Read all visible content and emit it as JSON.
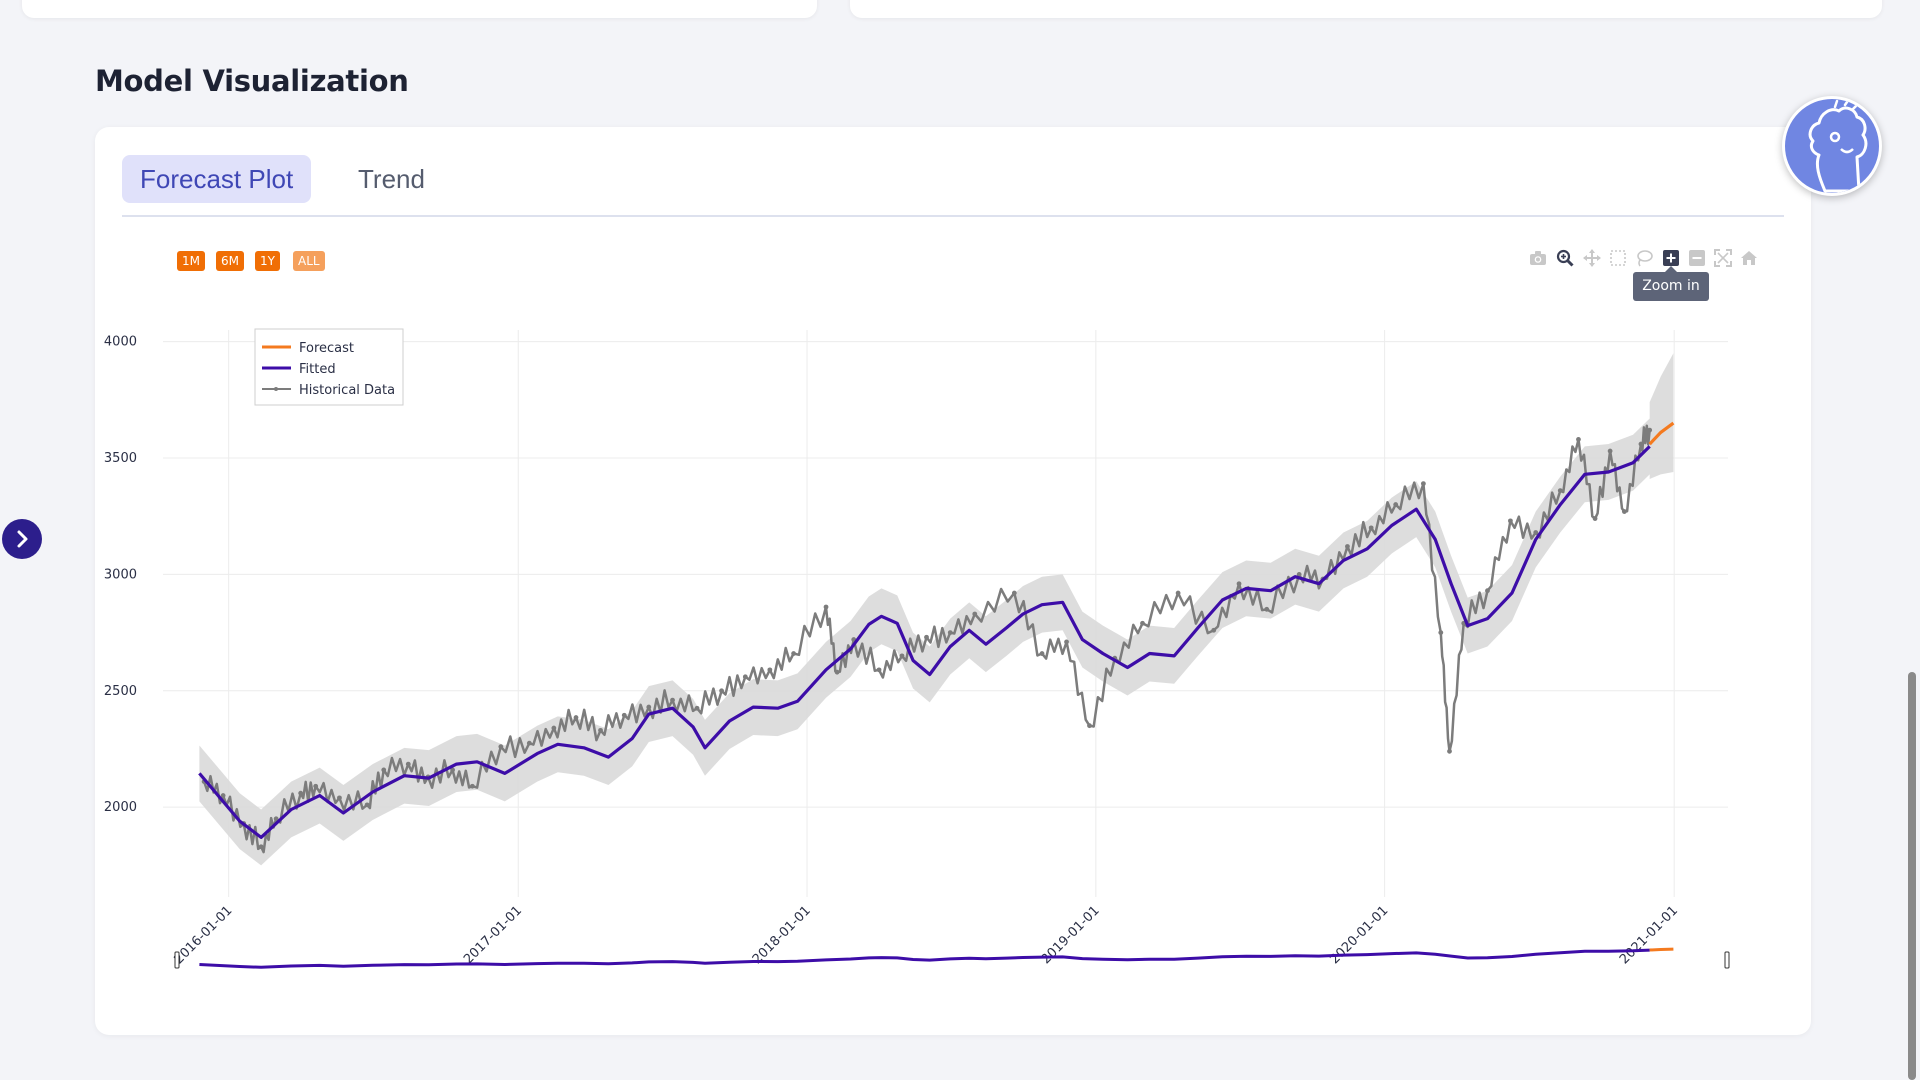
{
  "section": {
    "title": "Model Visualization"
  },
  "tabs": [
    {
      "label": "Forecast Plot",
      "active": true
    },
    {
      "label": "Trend",
      "active": false
    }
  ],
  "range_selector": [
    "1M",
    "6M",
    "1Y",
    "ALL"
  ],
  "modebar": {
    "icons": [
      "camera-icon",
      "zoom-icon",
      "pan-icon",
      "box-select-icon",
      "lasso-icon",
      "zoom-in-icon",
      "zoom-out-icon",
      "autoscale-icon",
      "reset-axes-icon"
    ],
    "tooltip": "Zoom in"
  },
  "colors": {
    "forecast": "#f47a1f",
    "fitted": "#3d0da8",
    "historical": "#7c7c7c",
    "band": "#d9d9d9",
    "accent": "#3f47b5",
    "range_button": "#f06e05"
  },
  "chart_data": {
    "type": "line",
    "x_ticks": [
      "2016-01-01",
      "2017-01-01",
      "2018-01-01",
      "2019-01-01",
      "2020-01-01",
      "2021-01-01"
    ],
    "y_ticks": [
      2000,
      2500,
      3000,
      3500,
      4000
    ],
    "xlim": [
      "2015-10-10",
      "2021-03-10"
    ],
    "ylim": [
      1700,
      4050
    ],
    "legend": {
      "position": "top-left",
      "entries": [
        "Forecast",
        "Fitted",
        "Historical Data"
      ]
    },
    "grid": true,
    "range_slider": true,
    "series": [
      {
        "name": "Fitted",
        "points": [
          [
            "2015-11-25",
            2145
          ],
          [
            "2016-01-15",
            1940
          ],
          [
            "2016-02-11",
            1870
          ],
          [
            "2016-03-20",
            1990
          ],
          [
            "2016-04-25",
            2050
          ],
          [
            "2016-05-25",
            1975
          ],
          [
            "2016-07-01",
            2065
          ],
          [
            "2016-08-10",
            2135
          ],
          [
            "2016-09-10",
            2125
          ],
          [
            "2016-10-15",
            2185
          ],
          [
            "2016-11-10",
            2195
          ],
          [
            "2016-12-15",
            2145
          ],
          [
            "2017-01-25",
            2230
          ],
          [
            "2017-02-20",
            2270
          ],
          [
            "2017-03-25",
            2255
          ],
          [
            "2017-04-25",
            2215
          ],
          [
            "2017-05-25",
            2295
          ],
          [
            "2017-06-15",
            2400
          ],
          [
            "2017-07-15",
            2425
          ],
          [
            "2017-08-10",
            2345
          ],
          [
            "2017-08-25",
            2255
          ],
          [
            "2017-09-25",
            2370
          ],
          [
            "2017-10-25",
            2430
          ],
          [
            "2017-11-25",
            2425
          ],
          [
            "2017-12-20",
            2455
          ],
          [
            "2018-01-25",
            2590
          ],
          [
            "2018-02-25",
            2680
          ],
          [
            "2018-03-20",
            2785
          ],
          [
            "2018-04-05",
            2820
          ],
          [
            "2018-04-25",
            2790
          ],
          [
            "2018-05-15",
            2630
          ],
          [
            "2018-06-05",
            2570
          ],
          [
            "2018-07-01",
            2690
          ],
          [
            "2018-07-25",
            2760
          ],
          [
            "2018-08-15",
            2700
          ],
          [
            "2018-09-10",
            2770
          ],
          [
            "2018-10-01",
            2830
          ],
          [
            "2018-10-25",
            2870
          ],
          [
            "2018-11-20",
            2880
          ],
          [
            "2018-12-15",
            2720
          ],
          [
            "2019-01-10",
            2660
          ],
          [
            "2019-02-10",
            2600
          ],
          [
            "2019-03-10",
            2660
          ],
          [
            "2019-04-10",
            2650
          ],
          [
            "2019-05-10",
            2770
          ],
          [
            "2019-06-10",
            2890
          ],
          [
            "2019-07-10",
            2940
          ],
          [
            "2019-08-10",
            2930
          ],
          [
            "2019-09-10",
            2990
          ],
          [
            "2019-10-10",
            2960
          ],
          [
            "2019-11-10",
            3060
          ],
          [
            "2019-12-10",
            3110
          ],
          [
            "2020-01-10",
            3210
          ],
          [
            "2020-02-10",
            3280
          ],
          [
            "2020-03-05",
            3150
          ],
          [
            "2020-03-25",
            2960
          ],
          [
            "2020-04-15",
            2780
          ],
          [
            "2020-05-10",
            2810
          ],
          [
            "2020-06-10",
            2920
          ],
          [
            "2020-07-10",
            3150
          ],
          [
            "2020-08-10",
            3300
          ],
          [
            "2020-09-10",
            3430
          ],
          [
            "2020-10-10",
            3440
          ],
          [
            "2020-11-10",
            3480
          ],
          [
            "2020-12-01",
            3550
          ]
        ]
      },
      {
        "name": "Forecast",
        "points": [
          [
            "2020-12-01",
            3560
          ],
          [
            "2020-12-15",
            3610
          ],
          [
            "2020-12-31",
            3650
          ]
        ]
      },
      {
        "name": "Historical Data",
        "points": [
          [
            "2015-12-01",
            2110
          ],
          [
            "2015-12-25",
            2050
          ],
          [
            "2016-01-20",
            1930
          ],
          [
            "2016-02-11",
            1830
          ],
          [
            "2016-03-01",
            1950
          ],
          [
            "2016-04-01",
            2060
          ],
          [
            "2016-04-20",
            2090
          ],
          [
            "2016-05-20",
            2040
          ],
          [
            "2016-06-24",
            2010
          ],
          [
            "2016-07-15",
            2160
          ],
          [
            "2016-08-15",
            2185
          ],
          [
            "2016-09-09",
            2130
          ],
          [
            "2016-10-10",
            2160
          ],
          [
            "2016-11-04",
            2090
          ],
          [
            "2016-12-10",
            2260
          ],
          [
            "2017-01-15",
            2275
          ],
          [
            "2017-02-15",
            2340
          ],
          [
            "2017-03-15",
            2385
          ],
          [
            "2017-04-15",
            2330
          ],
          [
            "2017-05-15",
            2395
          ],
          [
            "2017-06-15",
            2430
          ],
          [
            "2017-07-15",
            2460
          ],
          [
            "2017-08-15",
            2425
          ],
          [
            "2017-09-15",
            2500
          ],
          [
            "2017-10-15",
            2560
          ],
          [
            "2017-11-15",
            2590
          ],
          [
            "2017-12-15",
            2660
          ],
          [
            "2018-01-25",
            2860
          ],
          [
            "2018-02-08",
            2580
          ],
          [
            "2018-03-01",
            2720
          ],
          [
            "2018-04-02",
            2590
          ],
          [
            "2018-05-01",
            2650
          ],
          [
            "2018-06-01",
            2730
          ],
          [
            "2018-07-01",
            2750
          ],
          [
            "2018-08-01",
            2830
          ],
          [
            "2018-09-20",
            2920
          ],
          [
            "2018-10-25",
            2660
          ],
          [
            "2018-11-25",
            2710
          ],
          [
            "2018-12-24",
            2350
          ],
          [
            "2019-01-25",
            2640
          ],
          [
            "2019-03-01",
            2790
          ],
          [
            "2019-04-15",
            2920
          ],
          [
            "2019-05-30",
            2760
          ],
          [
            "2019-07-01",
            2960
          ],
          [
            "2019-08-05",
            2850
          ],
          [
            "2019-09-15",
            3000
          ],
          [
            "2019-10-15",
            2980
          ],
          [
            "2019-11-15",
            3120
          ],
          [
            "2019-12-15",
            3200
          ],
          [
            "2020-01-15",
            3300
          ],
          [
            "2020-02-19",
            3390
          ],
          [
            "2020-03-12",
            2750
          ],
          [
            "2020-03-23",
            2240
          ],
          [
            "2020-04-10",
            2790
          ],
          [
            "2020-05-10",
            2930
          ],
          [
            "2020-06-08",
            3230
          ],
          [
            "2020-07-10",
            3180
          ],
          [
            "2020-08-10",
            3360
          ],
          [
            "2020-09-02",
            3580
          ],
          [
            "2020-09-23",
            3240
          ],
          [
            "2020-10-12",
            3530
          ],
          [
            "2020-10-30",
            3270
          ],
          [
            "2020-11-20",
            3560
          ],
          [
            "2020-12-01",
            3620
          ]
        ]
      }
    ]
  }
}
